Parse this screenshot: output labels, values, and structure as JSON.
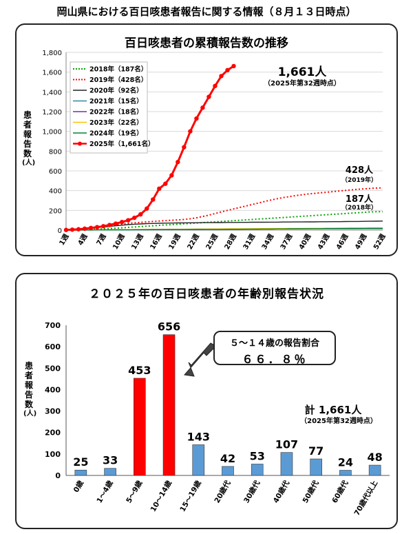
{
  "page_title": "岡山県における百日咳患者報告に関する情報（８月１３日時点）",
  "panel1": {
    "title": "百日咳患者の累積報告数の推移",
    "ylabel_chars": [
      "患",
      "者",
      "報",
      "告",
      "数",
      "(人)"
    ],
    "callout_main": "1,661人",
    "callout_main_sub": "（2025年第32週時点）",
    "callout_2019": "428人",
    "callout_2019_sub": "（2019年）",
    "callout_2018": "187人",
    "callout_2018_sub": "（2018年）"
  },
  "panel2": {
    "title": "２０２５年の百日咳患者の年齢別報告状況",
    "ylabel_chars": [
      "患",
      "者",
      "報",
      "告",
      "数",
      "(人)"
    ],
    "ratio_label": "５～１４歳の報告割合",
    "ratio_value": "６６．８％",
    "total_label": "計 1,661人",
    "total_sub": "（2025年第32週時点）"
  },
  "colors": {
    "red": "#ff0000",
    "blue": "#5b9bd5",
    "navy_bg": "#ffffff"
  },
  "chart_data": [
    {
      "type": "line",
      "title": "百日咳患者の累積報告数の推移",
      "ylim": [
        0,
        1800
      ],
      "yticks": [
        "0",
        "200",
        "400",
        "600",
        "800",
        "1,000",
        "1,200",
        "1,400",
        "1,600",
        "1,800"
      ],
      "xticks": [
        "1週",
        "4週",
        "7週",
        "10週",
        "13週",
        "16週",
        "19週",
        "22週",
        "25週",
        "28週",
        "31週",
        "34週",
        "37週",
        "40週",
        "43週",
        "46週",
        "49週",
        "52週"
      ],
      "legend_position": "top-left",
      "series": [
        {
          "name": "2018年（187名）",
          "color": "#00a000",
          "style": "dotted",
          "values": [
            1,
            2,
            4,
            6,
            8,
            11,
            14,
            17,
            20,
            24,
            28,
            32,
            36,
            40,
            44,
            48,
            52,
            56,
            60,
            64,
            68,
            72,
            76,
            80,
            84,
            88,
            92,
            96,
            100,
            104,
            108,
            112,
            116,
            120,
            124,
            128,
            132,
            136,
            140,
            144,
            148,
            152,
            156,
            160,
            164,
            168,
            172,
            176,
            180,
            184,
            186,
            187
          ]
        },
        {
          "name": "2019年（428名）",
          "color": "#ff0000",
          "style": "dotted",
          "values": [
            2,
            5,
            10,
            16,
            23,
            30,
            38,
            46,
            54,
            62,
            68,
            74,
            79,
            84,
            88,
            92,
            96,
            100,
            104,
            108,
            115,
            125,
            138,
            152,
            168,
            185,
            200,
            215,
            230,
            245,
            260,
            275,
            290,
            305,
            318,
            330,
            340,
            350,
            358,
            366,
            372,
            378,
            384,
            390,
            396,
            402,
            408,
            414,
            418,
            422,
            426,
            428
          ]
        },
        {
          "name": "2020年（92名）",
          "color": "#222222",
          "style": "solid",
          "values": [
            2,
            5,
            9,
            14,
            20,
            26,
            32,
            38,
            44,
            50,
            56,
            60,
            63,
            66,
            68,
            70,
            71,
            72,
            73,
            74,
            75,
            75,
            76,
            76,
            77,
            77,
            78,
            78,
            79,
            79,
            80,
            80,
            80,
            81,
            81,
            82,
            82,
            83,
            83,
            84,
            84,
            85,
            85,
            86,
            86,
            87,
            88,
            88,
            89,
            90,
            91,
            92
          ]
        },
        {
          "name": "2021年（15名）",
          "color": "#2e86a0",
          "style": "solid",
          "values": [
            0,
            1,
            1,
            2,
            2,
            3,
            3,
            3,
            4,
            4,
            4,
            5,
            5,
            5,
            6,
            6,
            6,
            7,
            7,
            7,
            8,
            8,
            8,
            9,
            9,
            9,
            10,
            10,
            10,
            10,
            11,
            11,
            11,
            11,
            12,
            12,
            12,
            12,
            13,
            13,
            13,
            13,
            13,
            14,
            14,
            14,
            14,
            14,
            15,
            15,
            15,
            15
          ]
        },
        {
          "name": "2022年（18名）",
          "color": "#7030a0",
          "style": "solid",
          "values": [
            0,
            1,
            1,
            2,
            2,
            3,
            3,
            4,
            4,
            5,
            5,
            6,
            6,
            7,
            7,
            8,
            8,
            8,
            9,
            9,
            9,
            10,
            10,
            10,
            11,
            11,
            11,
            12,
            12,
            12,
            13,
            13,
            13,
            14,
            14,
            14,
            15,
            15,
            15,
            16,
            16,
            16,
            16,
            17,
            17,
            17,
            17,
            18,
            18,
            18,
            18,
            18
          ]
        },
        {
          "name": "2023年（22名）",
          "color": "#ffc000",
          "style": "solid",
          "values": [
            0,
            1,
            1,
            2,
            2,
            3,
            3,
            4,
            4,
            5,
            5,
            6,
            6,
            7,
            7,
            8,
            8,
            9,
            9,
            10,
            10,
            11,
            11,
            12,
            12,
            13,
            13,
            14,
            14,
            15,
            15,
            16,
            16,
            17,
            17,
            17,
            18,
            18,
            18,
            19,
            19,
            19,
            20,
            20,
            20,
            21,
            21,
            21,
            21,
            22,
            22,
            22
          ]
        },
        {
          "name": "2024年（19名）",
          "color": "#00803c",
          "style": "solid",
          "values": [
            0,
            0,
            1,
            1,
            1,
            2,
            2,
            2,
            3,
            3,
            3,
            4,
            4,
            4,
            5,
            5,
            5,
            6,
            6,
            6,
            7,
            7,
            7,
            8,
            8,
            8,
            9,
            9,
            9,
            10,
            10,
            10,
            11,
            11,
            12,
            12,
            13,
            13,
            14,
            14,
            15,
            15,
            16,
            16,
            17,
            17,
            18,
            18,
            18,
            19,
            19,
            19
          ]
        },
        {
          "name": "2025年（1,661名）",
          "color": "#ff0000",
          "style": "marker",
          "values": [
            2,
            5,
            9,
            15,
            22,
            30,
            40,
            52,
            66,
            82,
            100,
            125,
            160,
            218,
            310,
            420,
            470,
            555,
            690,
            840,
            1000,
            1130,
            1240,
            1350,
            1460,
            1560,
            1620,
            1661
          ]
        }
      ]
    },
    {
      "type": "bar",
      "title": "２０２５年の百日咳患者の年齢別報告状況",
      "ylim": [
        0,
        700
      ],
      "yticks": [
        "0",
        "100",
        "200",
        "300",
        "400",
        "500",
        "600",
        "700"
      ],
      "categories": [
        "0歳",
        "1～4歳",
        "5～9歳",
        "10～14歳",
        "15～19歳",
        "20歳代",
        "30歳代",
        "40歳代",
        "50歳代",
        "60歳代",
        "70歳代以上"
      ],
      "values": [
        25,
        33,
        453,
        656,
        143,
        42,
        53,
        107,
        77,
        24,
        48
      ],
      "highlight": [
        false,
        false,
        true,
        true,
        false,
        false,
        false,
        false,
        false,
        false,
        false
      ]
    }
  ]
}
